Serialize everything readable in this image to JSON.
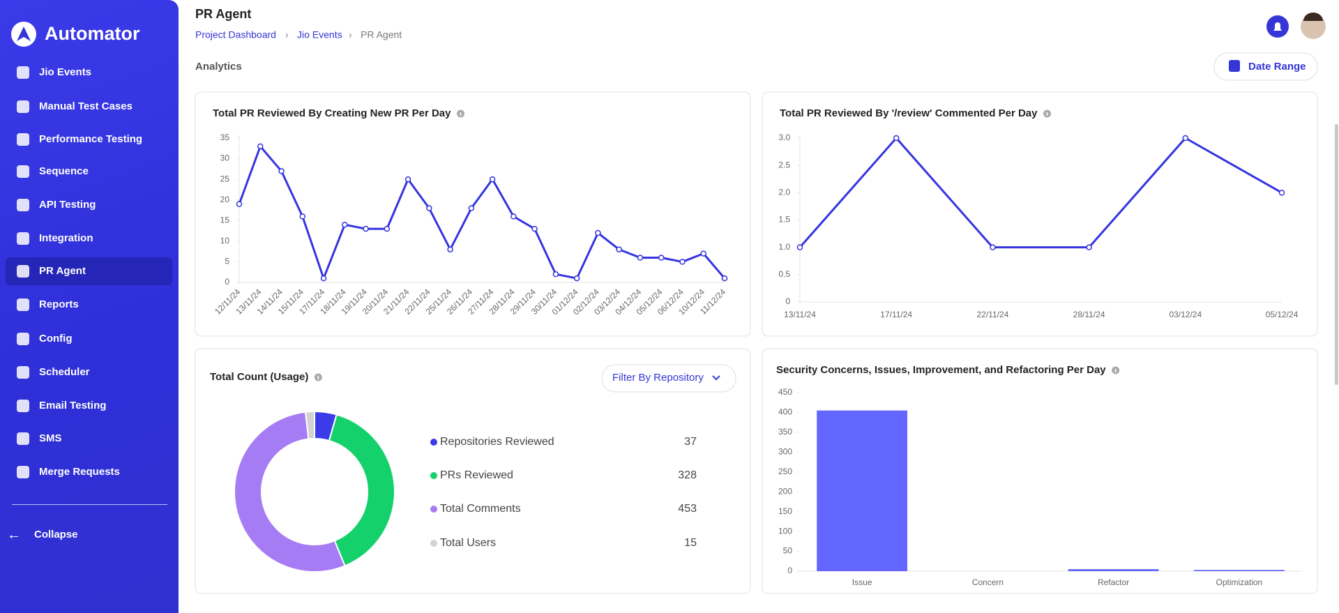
{
  "sidebar": {
    "brand": "Automator",
    "nav": [
      "Jio Events",
      "Manual Test Cases",
      "Performance Testing",
      "Sequence",
      "API Testing",
      "Integration",
      "PR Agent",
      "Reports",
      "Config",
      "Scheduler",
      "Email Testing",
      "SMS",
      "Merge Requests"
    ],
    "collapse": "Collapse"
  },
  "header": {
    "title": "PR Agent",
    "breadcrumbs": [
      "Project Dashboard",
      "Jio Events",
      "PR Agent"
    ],
    "section": "Analytics",
    "date_range": "Date Range"
  },
  "chart_data": [
    {
      "type": "line",
      "title": "Total PR Reviewed By Creating New PR Per Day",
      "categories": [
        "12/11/24",
        "13/11/24",
        "14/11/24",
        "15/11/24",
        "17/11/24",
        "18/11/24",
        "19/11/24",
        "20/11/24",
        "21/11/24",
        "22/11/24",
        "25/11/24",
        "26/11/24",
        "27/11/24",
        "28/11/24",
        "29/11/24",
        "30/11/24",
        "01/12/24",
        "02/12/24",
        "03/12/24",
        "04/12/24",
        "05/12/24",
        "06/12/24",
        "10/12/24",
        "11/12/24"
      ],
      "values": [
        19,
        33,
        27,
        16,
        1,
        14,
        13,
        13,
        25,
        18,
        8,
        18,
        25,
        16,
        13,
        2,
        1,
        12,
        8,
        6,
        6,
        5,
        7,
        1
      ],
      "color": "#3434e0",
      "ylim": [
        0,
        35
      ],
      "yticks": [
        0,
        5,
        10,
        15,
        20,
        25,
        30,
        35
      ],
      "grid": false
    },
    {
      "type": "line",
      "title": "Total PR Reviewed By '/review' Commented Per Day",
      "categories": [
        "13/11/24",
        "17/11/24",
        "22/11/24",
        "28/11/24",
        "03/12/24",
        "05/12/24"
      ],
      "values": [
        1,
        3,
        1,
        1,
        3,
        2
      ],
      "color": "#3434e0",
      "ylim": [
        0,
        3
      ],
      "yticks": [
        0,
        0.5,
        {
          "value": 1,
          "label": "1.0"
        },
        1.5,
        {
          "value": 2,
          "label": "2.0"
        },
        2.5,
        {
          "value": 3,
          "label": "3.0"
        }
      ],
      "grid": false
    },
    {
      "type": "pie",
      "title": "Total Count (Usage)",
      "filter": "Filter By Repository",
      "categories": [
        "Repositories Reviewed",
        "PRs Reviewed",
        "Total Comments",
        "Total Users"
      ],
      "values": [
        37,
        328,
        453,
        15
      ],
      "colors": [
        "#3b3bea",
        "#14d16b",
        "#a67cf5",
        "#d2d2d2"
      ]
    },
    {
      "type": "bar",
      "title": "Security Concerns, Issues, Improvement, and Refactoring Per Day",
      "categories": [
        "Issue",
        "Concern",
        "Refactor",
        "Optimization"
      ],
      "values": [
        405,
        0,
        5,
        3
      ],
      "color": "#6366ff",
      "ylim": [
        0,
        450
      ],
      "yticks": [
        0,
        50,
        100,
        150,
        200,
        250,
        300,
        350,
        400,
        450
      ],
      "grid": false
    }
  ]
}
